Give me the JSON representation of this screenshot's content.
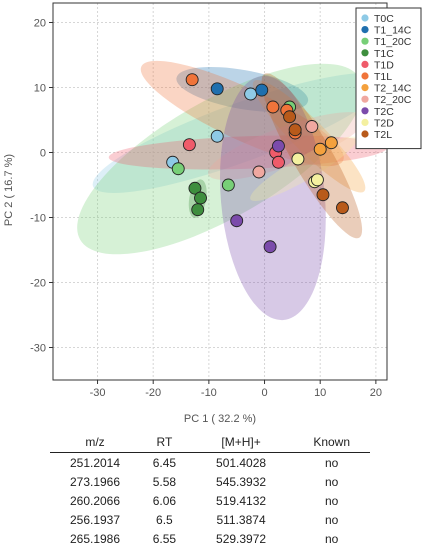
{
  "chart_data": {
    "type": "scatter",
    "title": "",
    "xlabel": "PC 1 ( 32.2 %)",
    "ylabel": "PC 2 ( 16.7 %)",
    "xlim": [
      -38,
      22
    ],
    "ylim": [
      -35,
      23
    ],
    "xticks": [
      "-30",
      "-20",
      "-10",
      "0",
      "10",
      "20"
    ],
    "yticks": [
      "20",
      "10",
      "0",
      "-10",
      "-20",
      "-30"
    ],
    "grid": true,
    "legend_position": "top-right",
    "series": [
      {
        "name": "T0C",
        "color": "#8ecae6",
        "points": [
          [
            -16.5,
            -1.5
          ],
          [
            -8.5,
            2.5
          ],
          [
            -2.5,
            9.0
          ]
        ]
      },
      {
        "name": "T1_14C",
        "color": "#1f6fae",
        "points": [
          [
            -8.5,
            9.8
          ],
          [
            -0.5,
            9.6
          ]
        ]
      },
      {
        "name": "T1_20C",
        "color": "#77cf77",
        "points": [
          [
            -15.5,
            -2.5
          ],
          [
            -6.5,
            -5.0
          ],
          [
            4.5,
            7.0
          ]
        ]
      },
      {
        "name": "T1C",
        "color": "#3e8e3e",
        "points": [
          [
            -12.5,
            -5.5
          ],
          [
            -11.5,
            -7.0
          ],
          [
            -12.0,
            -8.8
          ]
        ]
      },
      {
        "name": "T1D",
        "color": "#ef5b6a",
        "points": [
          [
            -13.5,
            1.2
          ],
          [
            2.0,
            0.0
          ],
          [
            2.5,
            -1.5
          ]
        ]
      },
      {
        "name": "T1L",
        "color": "#f0743a",
        "points": [
          [
            -13.0,
            11.2
          ],
          [
            1.5,
            7.0
          ],
          [
            5.5,
            3.0
          ],
          [
            4.0,
            6.5
          ]
        ]
      },
      {
        "name": "T2_14C",
        "color": "#f4a13d",
        "points": [
          [
            12.0,
            1.5
          ],
          [
            10.0,
            0.5
          ]
        ]
      },
      {
        "name": "T2_20C",
        "color": "#f0a8a0",
        "points": [
          [
            -1.0,
            -3.0
          ],
          [
            8.5,
            4.0
          ]
        ]
      },
      {
        "name": "T2C",
        "color": "#7b4bab",
        "points": [
          [
            -5.0,
            -10.5
          ],
          [
            1.0,
            -14.5
          ],
          [
            2.5,
            1.0
          ]
        ]
      },
      {
        "name": "T2D",
        "color": "#f4f0a0",
        "points": [
          [
            6.0,
            -1.0
          ],
          [
            9.0,
            -4.5
          ],
          [
            9.5,
            -4.2
          ]
        ]
      },
      {
        "name": "T2L",
        "color": "#b85a1a",
        "points": [
          [
            4.5,
            5.5
          ],
          [
            5.5,
            3.5
          ],
          [
            10.5,
            -6.5
          ],
          [
            14.0,
            -8.5
          ]
        ]
      }
    ],
    "ellipses": [
      {
        "group": "T0C",
        "cx": -4.5,
        "cy": 3.0,
        "rx": 28,
        "ry": 4.5,
        "angle": 20
      },
      {
        "group": "T1_14C",
        "cx": -4.0,
        "cy": 9.7,
        "rx": 12,
        "ry": 3.0,
        "angle": -10
      },
      {
        "group": "T1_20C",
        "cx": -8.0,
        "cy": -1.0,
        "rx": 29,
        "ry": 9.0,
        "angle": 30
      },
      {
        "group": "T1C",
        "cx": -12.0,
        "cy": -7.1,
        "rx": 3.5,
        "ry": 1.3,
        "angle": 80
      },
      {
        "group": "T1D",
        "cx": -3.0,
        "cy": 0.0,
        "rx": 25,
        "ry": 2.5,
        "angle": 2
      },
      {
        "group": "T1L",
        "cx": -4.0,
        "cy": 6.0,
        "rx": 20,
        "ry": 4.0,
        "angle": -25
      },
      {
        "group": "T2_14C",
        "cx": 8.0,
        "cy": 2.5,
        "rx": 14,
        "ry": 2.5,
        "angle": -45
      },
      {
        "group": "T2_20C",
        "cx": 4.0,
        "cy": 1.0,
        "rx": 15,
        "ry": 3.0,
        "angle": 20
      },
      {
        "group": "T2C",
        "cx": 1.5,
        "cy": -7.0,
        "rx": 22,
        "ry": 8.0,
        "angle": -85
      },
      {
        "group": "T2D",
        "cx": 7.0,
        "cy": -2.5,
        "rx": 11,
        "ry": 1.8,
        "angle": 30
      },
      {
        "group": "T2L",
        "cx": 8.5,
        "cy": -0.5,
        "rx": 17,
        "ry": 3.0,
        "angle": -60
      }
    ]
  },
  "table": {
    "headers": [
      "m/z",
      "RT",
      "[M+H]+",
      "Known"
    ],
    "rows": [
      [
        "251.2014",
        "6.45",
        "501.4028",
        "no"
      ],
      [
        "273.1966",
        "5.58",
        "545.3932",
        "no"
      ],
      [
        "260.2066",
        "6.06",
        "519.4132",
        "no"
      ],
      [
        "256.1937",
        "6.5",
        "511.3874",
        "no"
      ],
      [
        "265.1986",
        "6.55",
        "529.3972",
        "no"
      ]
    ]
  }
}
